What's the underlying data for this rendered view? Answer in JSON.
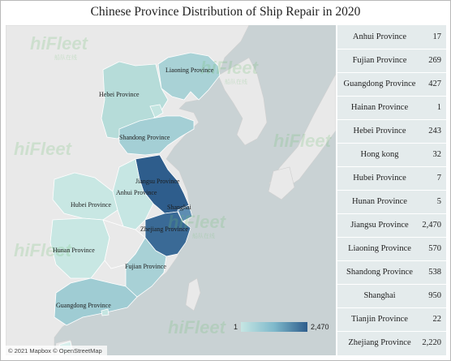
{
  "title": "Chinese Province Distribution of Ship Repair in 2020",
  "colors": {
    "low": "#c6e6e3",
    "mid": "#7fb9cb",
    "high": "#2e5d8c",
    "land": "#e9e9e9",
    "sea": "#c9d2d4",
    "table_bg": "#e4ebec"
  },
  "table": {
    "rows": [
      {
        "name": "Anhui Province",
        "value": "17"
      },
      {
        "name": "Fujian Province",
        "value": "269"
      },
      {
        "name": "Guangdong Province",
        "value": "427"
      },
      {
        "name": "Hainan Province",
        "value": "1"
      },
      {
        "name": "Hebei Province",
        "value": "243"
      },
      {
        "name": "Hong kong",
        "value": "32"
      },
      {
        "name": "Hubei Province",
        "value": "7"
      },
      {
        "name": "Hunan Province",
        "value": "5"
      },
      {
        "name": "Jiangsu Province",
        "value": "2,470"
      },
      {
        "name": "Liaoning Province",
        "value": "570"
      },
      {
        "name": "Shandong Province",
        "value": "538"
      },
      {
        "name": "Shanghai",
        "value": "950"
      },
      {
        "name": "Tianjin Province",
        "value": "22"
      },
      {
        "name": "Zhejiang Province",
        "value": "2,220"
      }
    ]
  },
  "map": {
    "labels": {
      "liaoning": "Liaoning Province",
      "hebei": "Hebei Province",
      "shandong": "Shandong Province",
      "jiangsu": "Jiangsu Province",
      "anhui": "Anhui Province",
      "shanghai": "Shanghai",
      "hubei": "Hubei Province",
      "zhejiang": "Zhejiang Province",
      "hunan": "Hunan Province",
      "fujian": "Fujian Province",
      "guangdong": "Guangdong Province"
    },
    "legend": {
      "min": "1",
      "max": "2,470"
    },
    "attribution": "© 2021 Mapbox © OpenStreetMap"
  },
  "watermark": {
    "text": "hiFleet",
    "sub": "船队在线"
  }
}
